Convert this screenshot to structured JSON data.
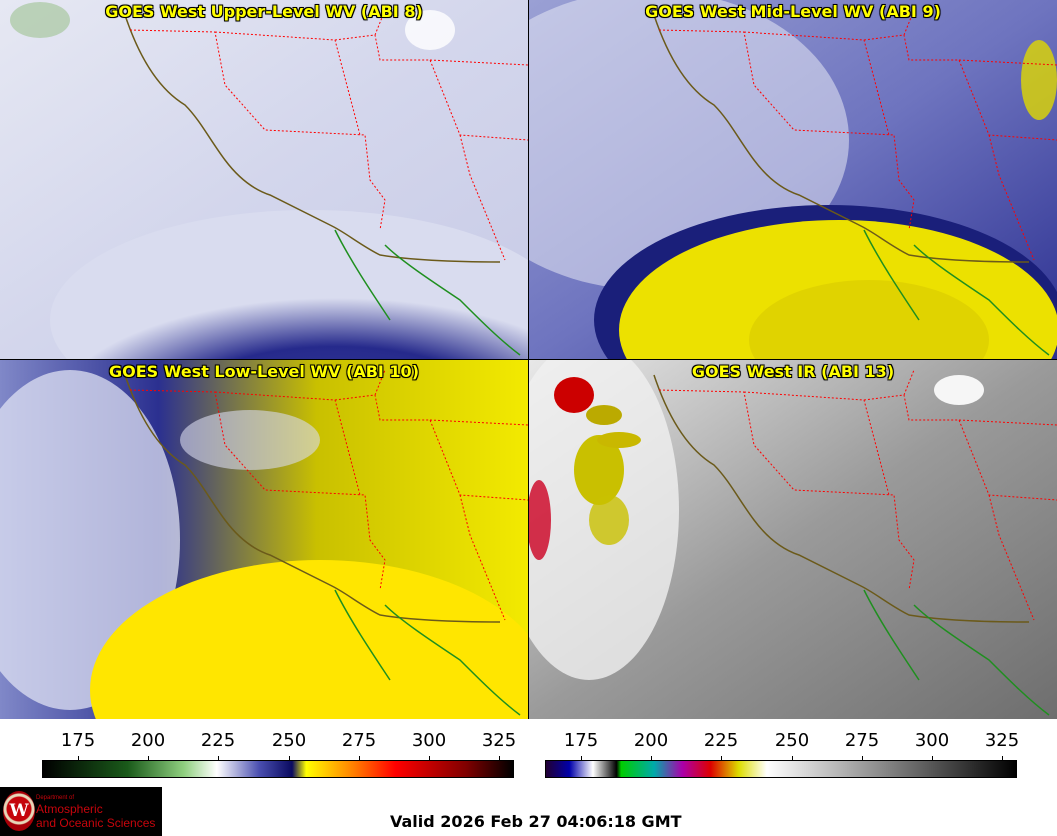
{
  "panels": [
    {
      "title": "GOES West Upper-Level WV (ABI 8)"
    },
    {
      "title": "GOES West Mid-Level WV (ABI 9)"
    },
    {
      "title": "GOES West Low-Level WV (ABI 10)"
    },
    {
      "title": "GOES West IR (ABI 13)"
    }
  ],
  "colorbar_wv": {
    "ticks": [
      "175",
      "200",
      "225",
      "250",
      "275",
      "300",
      "325"
    ]
  },
  "colorbar_ir": {
    "ticks": [
      "175",
      "200",
      "225",
      "250",
      "275",
      "300",
      "325"
    ]
  },
  "logo": {
    "line1": "Department of",
    "line2": "Atmospheric",
    "line3": "and Oceanic Sciences",
    "seal": "W"
  },
  "valid_time": "Valid 2026 Feb 27 04:06:18 GMT",
  "colors": {
    "title_text": "#ffff00",
    "state_borders": "#ff0000",
    "coastline": "#6b5a1a",
    "mexico_coast": "#1f8f1f"
  }
}
